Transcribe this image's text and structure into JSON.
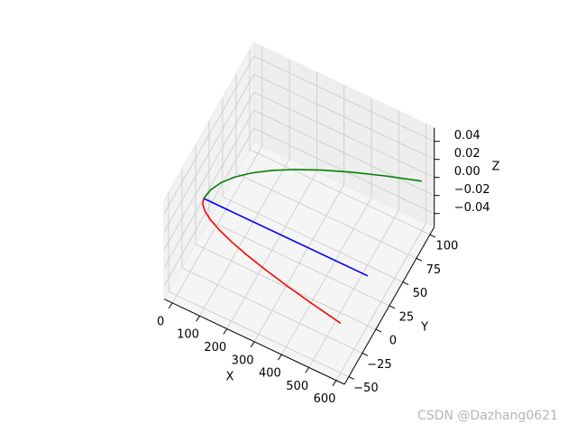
{
  "chart_data": {
    "type": "line3d",
    "xlabel": "X",
    "ylabel": "Y",
    "zlabel": "Z",
    "xlim": [
      -30,
      630
    ],
    "ylim": [
      -58,
      108
    ],
    "zlim": [
      -0.055,
      0.055
    ],
    "xticks": [
      0,
      100,
      200,
      300,
      400,
      500,
      600
    ],
    "yticks": [
      {
        "value": -50,
        "label": "−50"
      },
      {
        "value": -25,
        "label": "−25"
      },
      0,
      25,
      50,
      75,
      100
    ],
    "zticks": [
      {
        "value": -0.04,
        "label": "−0.04"
      },
      {
        "value": -0.02,
        "label": "−0.02"
      },
      {
        "value": 0,
        "label": "0.00"
      },
      0.02,
      0.04
    ],
    "grid": true,
    "series": [
      {
        "color": "#0000ff",
        "x": [
          0,
          600
        ],
        "y": [
          0,
          0
        ],
        "z": [
          0,
          0
        ]
      },
      {
        "color": "#ff0000",
        "x": [
          0,
          6,
          24,
          54,
          96,
          150,
          216,
          294,
          384,
          486,
          600
        ],
        "y": [
          0,
          -5,
          -10,
          -15,
          -20,
          -25,
          -30,
          -35,
          -40,
          -45,
          -50
        ],
        "z": [
          0,
          0,
          0,
          0,
          0,
          0,
          0,
          0,
          0,
          0,
          0
        ]
      },
      {
        "color": "#008000",
        "x": [
          0,
          6,
          24,
          54,
          96,
          150,
          216,
          294,
          384,
          486,
          600
        ],
        "y": [
          0,
          10,
          20,
          30,
          40,
          50,
          60,
          70,
          80,
          90,
          100
        ],
        "z": [
          0,
          0,
          0,
          0,
          0,
          0,
          0,
          0,
          0,
          0,
          0
        ]
      }
    ],
    "watermark": "CSDN @Dazhang0621"
  }
}
